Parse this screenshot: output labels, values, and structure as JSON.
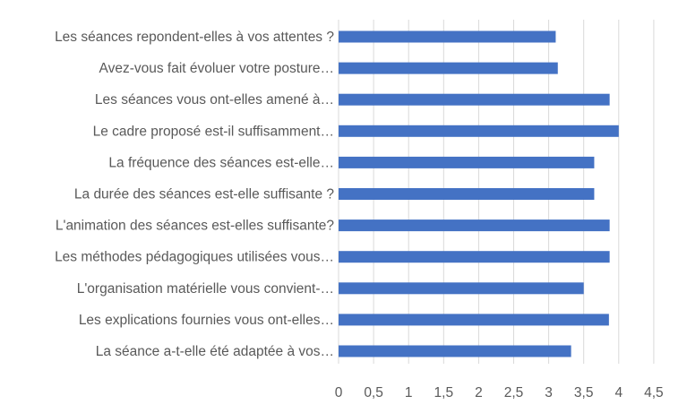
{
  "chart_data": {
    "type": "bar",
    "orientation": "horizontal",
    "categories": [
      "Les séances repondent-elles à vos attentes ?",
      "Avez-vous fait évoluer votre posture…",
      "Les séances vous ont-elles amené à…",
      "Le cadre proposé est-il suffisamment…",
      "La fréquence des séances est-elle…",
      "La durée des séances est-elle suffisante ?",
      "L'animation des séances est-elles suffisante?",
      "Les méthodes pédagogiques utilisées vous…",
      "L'organisation matérielle vous convient-…",
      "Les explications fournies vous ont-elles…",
      "La séance a-t-elle été adaptée à vos…"
    ],
    "values": [
      3.1,
      3.13,
      3.87,
      4.0,
      3.65,
      3.65,
      3.87,
      3.87,
      3.5,
      3.86,
      3.32
    ],
    "xlim": [
      0,
      4.5
    ],
    "ticks": [
      "0",
      "0,5",
      "1",
      "1,5",
      "2",
      "2,5",
      "3",
      "3,5",
      "4",
      "4,5"
    ],
    "tick_values": [
      0,
      0.5,
      1,
      1.5,
      2,
      2.5,
      3,
      3.5,
      4,
      4.5
    ],
    "grid": true,
    "bar_color": "#4472c4",
    "title": "",
    "xlabel": "",
    "ylabel": ""
  }
}
